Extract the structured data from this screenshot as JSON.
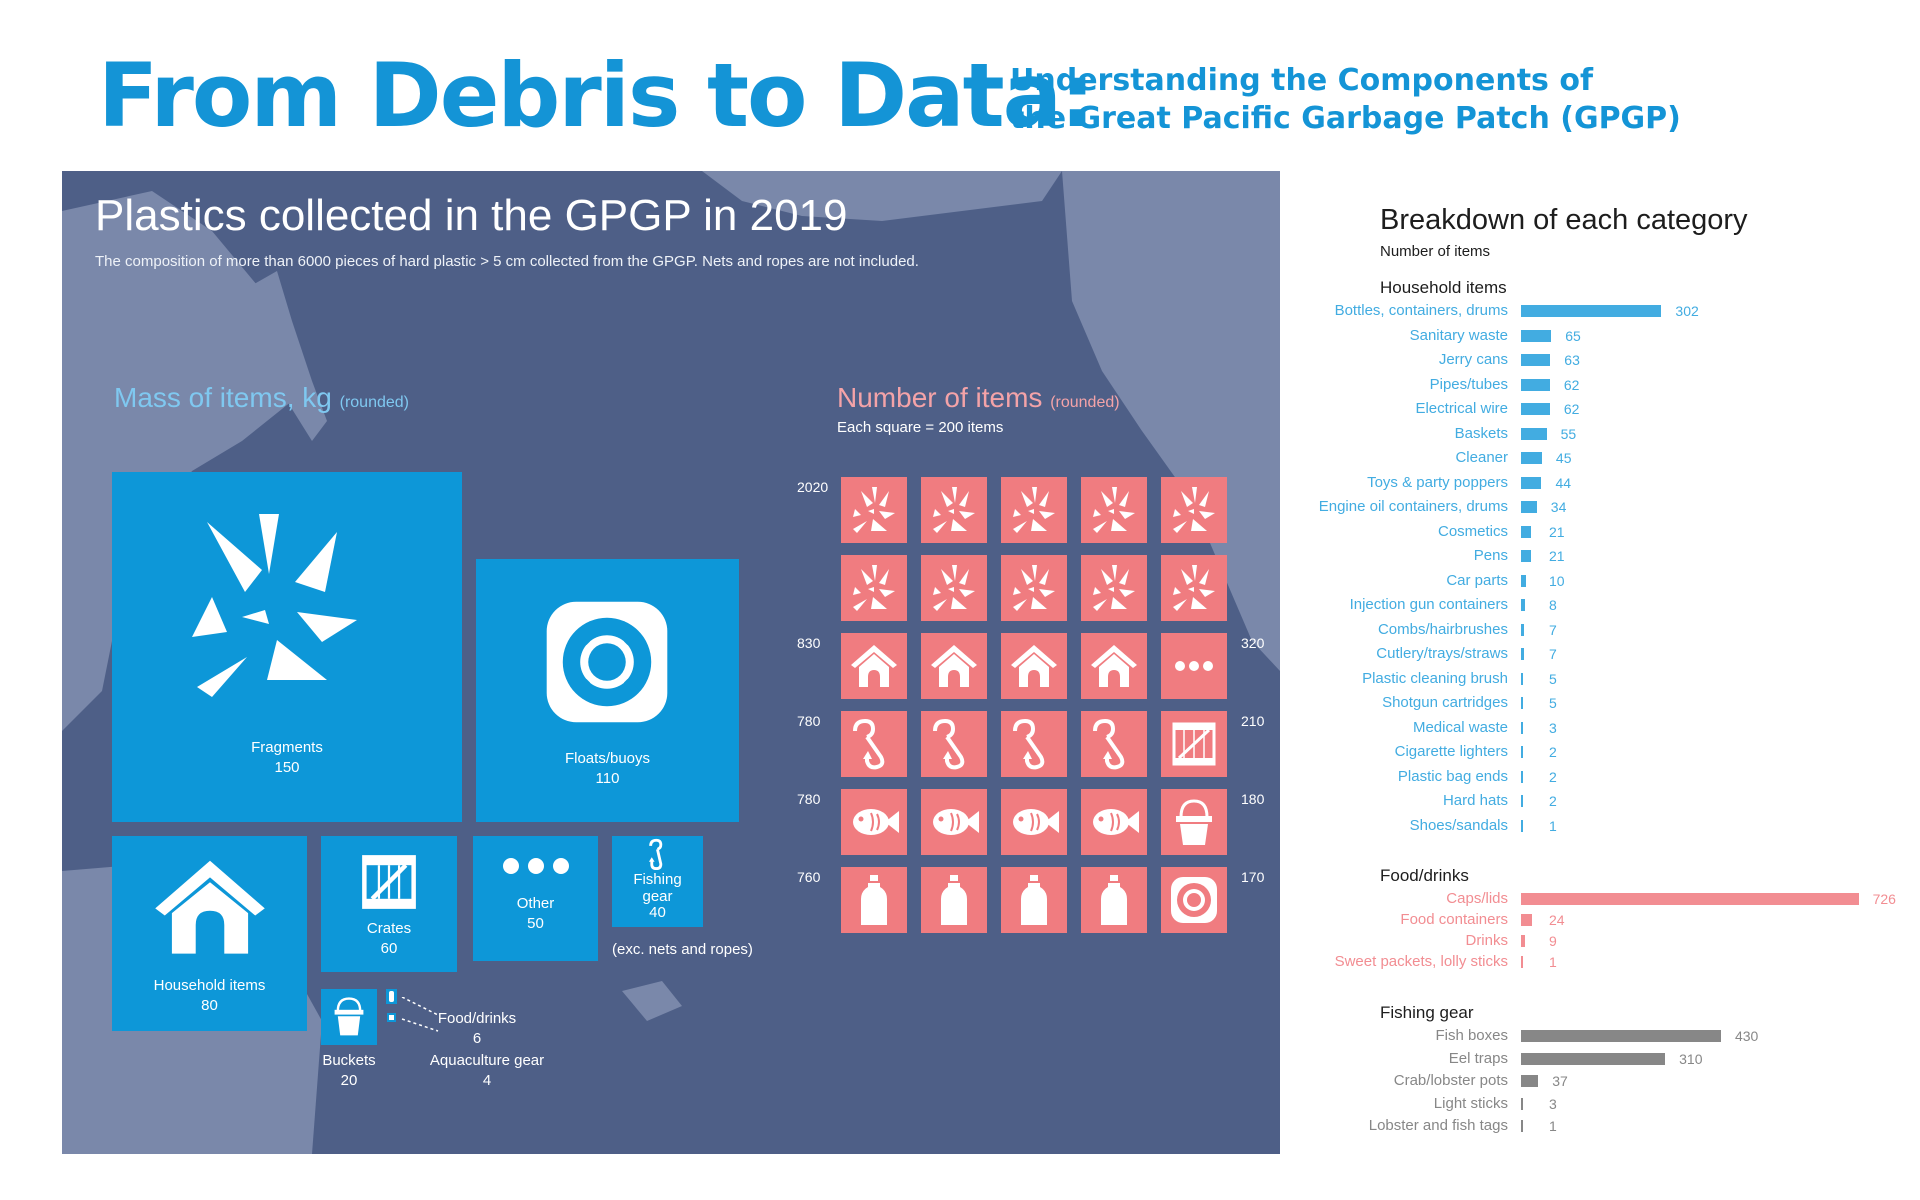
{
  "header": {
    "title": "From Debris to Data:",
    "subtitle_line1": "Understanding the Components of",
    "subtitle_line2": "the Great Pacific Garbage Patch (GPGP)"
  },
  "panel": {
    "title": "Plastics collected in the GPGP in 2019",
    "subtitle": "The composition of more than 6000 pieces of hard plastic > 5 cm collected from the GPGP. Nets and ropes are not included.",
    "mass_heading": "Mass of items, kg",
    "mass_heading_note": "(rounded)",
    "count_heading": "Number of items",
    "count_heading_note": "(rounded)",
    "square_note": "Each square = 200 items",
    "fishing_note": "(exc. nets and ropes)"
  },
  "colors": {
    "blue": "#0d97d8",
    "title_blue": "#1494d6",
    "pink": "#f07c80",
    "gray": "#878787",
    "ocean": "#4e5f87",
    "land": "#7a88aa"
  },
  "chart_data": [
    {
      "type": "treemap",
      "title": "Mass of items, kg",
      "items": [
        {
          "name": "Fragments",
          "value": 150,
          "icon": "fragments-icon"
        },
        {
          "name": "Floats/buoys",
          "value": 110,
          "icon": "lifebuoy-icon"
        },
        {
          "name": "Household items",
          "value": 80,
          "icon": "house-icon"
        },
        {
          "name": "Crates",
          "value": 60,
          "icon": "crate-icon"
        },
        {
          "name": "Other",
          "value": 50,
          "icon": "dots-icon"
        },
        {
          "name": "Fishing gear",
          "value": 40,
          "icon": "fishing-hook-icon"
        },
        {
          "name": "Buckets",
          "value": 20,
          "icon": "bucket-icon"
        },
        {
          "name": "Food/drinks",
          "value": 6,
          "icon": "bottle-icon"
        },
        {
          "name": "Aquaculture gear",
          "value": 4,
          "icon": "aquaculture-icon"
        }
      ]
    },
    {
      "type": "pictogram",
      "title": "Number of items",
      "unit_per_square": 200,
      "rows": [
        {
          "icons": [
            "fragments-icon",
            "fragments-icon",
            "fragments-icon",
            "fragments-icon",
            "fragments-icon"
          ],
          "left_label": "2020",
          "right_label": ""
        },
        {
          "icons": [
            "fragments-icon",
            "fragments-icon",
            "fragments-icon",
            "fragments-icon",
            "fragments-icon"
          ],
          "left_label": "",
          "right_label": ""
        },
        {
          "icons": [
            "house-icon",
            "house-icon",
            "house-icon",
            "house-icon",
            "dots-icon"
          ],
          "left_label": "830",
          "right_label": "320"
        },
        {
          "icons": [
            "fishing-hook-icon",
            "fishing-hook-icon",
            "fishing-hook-icon",
            "fishing-hook-icon",
            "crate-icon"
          ],
          "left_label": "780",
          "right_label": "210"
        },
        {
          "icons": [
            "fish-icon",
            "fish-icon",
            "fish-icon",
            "fish-icon",
            "bucket-icon"
          ],
          "left_label": "780",
          "right_label": "180"
        },
        {
          "icons": [
            "bottle-icon",
            "bottle-icon",
            "bottle-icon",
            "bottle-icon",
            "lifebuoy-icon"
          ],
          "left_label": "760",
          "right_label": "170"
        }
      ]
    },
    {
      "type": "bar",
      "orientation": "horizontal",
      "title": "Breakdown of each category",
      "subtitle": "Number of items",
      "groups": [
        {
          "name": "Household items",
          "color": "#42ace1",
          "categories": [
            "Bottles, containers, drums",
            "Sanitary waste",
            "Jerry cans",
            "Pipes/tubes",
            "Electrical wire",
            "Baskets",
            "Cleaner",
            "Toys & party poppers",
            "Engine oil containers, drums",
            "Cosmetics",
            "Pens",
            "Car parts",
            "Injection gun containers",
            "Combs/hairbrushes",
            "Cutlery/trays/straws",
            "Plastic cleaning brush",
            "Shotgun cartridges",
            "Medical waste",
            "Cigarette lighters",
            "Plastic bag ends",
            "Hard hats",
            "Shoes/sandals"
          ],
          "values": [
            302,
            65,
            63,
            62,
            62,
            55,
            45,
            44,
            34,
            21,
            21,
            10,
            8,
            7,
            7,
            5,
            5,
            3,
            2,
            2,
            2,
            1
          ]
        },
        {
          "name": "Food/drinks",
          "color": "#f28d92",
          "categories": [
            "Caps/lids",
            "Food containers",
            "Drinks",
            "Sweet packets, lolly sticks"
          ],
          "values": [
            726,
            24,
            9,
            1
          ]
        },
        {
          "name": "Fishing gear",
          "color": "#878787",
          "categories": [
            "Fish boxes",
            "Eel traps",
            "Crab/lobster pots",
            "Light sticks",
            "Lobster and fish tags"
          ],
          "values": [
            430,
            310,
            37,
            3,
            1
          ]
        }
      ]
    }
  ]
}
